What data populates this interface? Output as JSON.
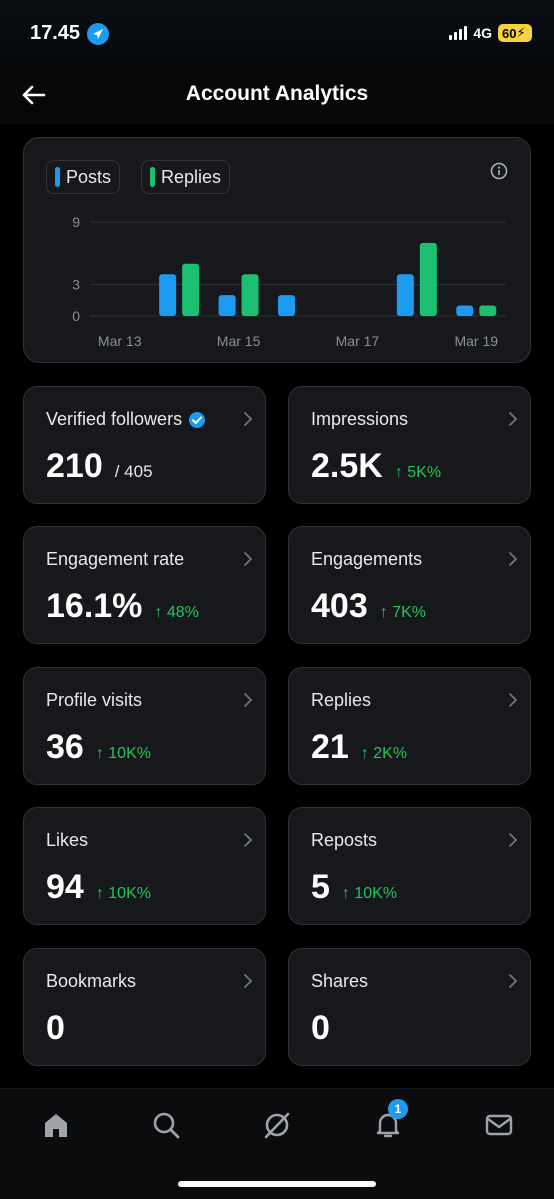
{
  "status_bar": {
    "time": "17.45",
    "network": "4G",
    "battery": "60"
  },
  "header": {
    "title": "Account Analytics"
  },
  "chart_data": {
    "type": "bar",
    "categories": [
      "Mar 13",
      "Mar 14",
      "Mar 15",
      "Mar 16",
      "Mar 17",
      "Mar 18",
      "Mar 19"
    ],
    "x_tick_labels": [
      "Mar 13",
      "Mar 15",
      "Mar 17",
      "Mar 19"
    ],
    "y_ticks": [
      "9",
      "3",
      "0"
    ],
    "ylim": [
      0,
      9
    ],
    "grid": true,
    "legend_position": "top-left",
    "series": [
      {
        "name": "Posts",
        "color": "#1d9bf0",
        "values": [
          0,
          4,
          2,
          2,
          0,
          4,
          1
        ]
      },
      {
        "name": "Replies",
        "color": "#1dbf73",
        "values": [
          0,
          5,
          4,
          0,
          0,
          7,
          1
        ]
      }
    ]
  },
  "stats": [
    {
      "label": "Verified followers",
      "value": "210",
      "sub": "/ 405",
      "change": "",
      "verified": true
    },
    {
      "label": "Impressions",
      "value": "2.5K",
      "sub": "",
      "change": "↑ 5K%"
    },
    {
      "label": "Engagement rate",
      "value": "16.1%",
      "sub": "",
      "change": "↑ 48%"
    },
    {
      "label": "Engagements",
      "value": "403",
      "sub": "",
      "change": "↑ 7K%"
    },
    {
      "label": "Profile visits",
      "value": "36",
      "sub": "",
      "change": "↑ 10K%"
    },
    {
      "label": "Replies",
      "value": "21",
      "sub": "",
      "change": "↑ 2K%"
    },
    {
      "label": "Likes",
      "value": "94",
      "sub": "",
      "change": "↑ 10K%"
    },
    {
      "label": "Reposts",
      "value": "5",
      "sub": "",
      "change": "↑ 10K%"
    },
    {
      "label": "Bookmarks",
      "value": "0",
      "sub": "",
      "change": ""
    },
    {
      "label": "Shares",
      "value": "0",
      "sub": "",
      "change": ""
    }
  ],
  "nav": {
    "items": [
      "home-icon",
      "search-icon",
      "grok-icon",
      "notifications-icon",
      "messages-icon"
    ],
    "notification_count": "1"
  },
  "colors": {
    "accent": "#1d9bf0",
    "positive": "#22c55e",
    "card": "#16181c"
  }
}
